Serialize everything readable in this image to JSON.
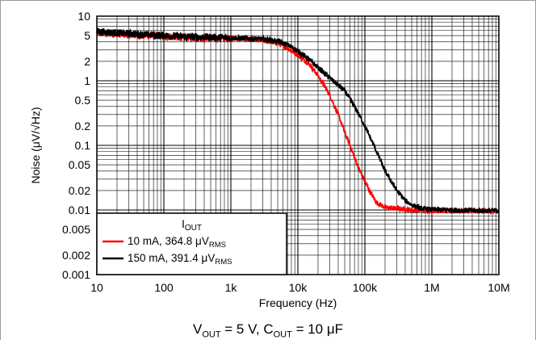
{
  "chart_data": {
    "type": "line",
    "xscale": "log",
    "yscale": "log",
    "xlim": [
      10,
      10000000
    ],
    "ylim": [
      0.001,
      10
    ],
    "xlabel": "Frequency (Hz)",
    "ylabel": "Noise (μV/√Hz)",
    "x_ticks": [
      10,
      100,
      1000,
      10000,
      100000,
      1000000,
      10000000
    ],
    "x_tick_labels": [
      "10",
      "100",
      "1k",
      "10k",
      "100k",
      "1M",
      "10M"
    ],
    "y_ticks": [
      0.001,
      0.002,
      0.005,
      0.01,
      0.02,
      0.05,
      0.1,
      0.2,
      0.5,
      1,
      2,
      5,
      10
    ],
    "y_tick_labels": [
      "0.001",
      "0.002",
      "0.005",
      "0.01",
      "0.02",
      "0.05",
      "0.1",
      "0.2",
      "0.5",
      "1",
      "2",
      "5",
      "10"
    ],
    "grid": true,
    "legend_position": "bottom-left",
    "legend_title": "I",
    "legend_title_sub": "OUT",
    "series": [
      {
        "name": "10 mA, 364.8 μV",
        "name_sub": "RMS",
        "color": "#ff0000",
        "x": [
          10,
          20,
          50,
          100,
          200,
          500,
          1000,
          2000,
          3000,
          5000,
          7000,
          10000,
          15000,
          20000,
          30000,
          40000,
          50000,
          60000,
          70000,
          80000,
          100000,
          120000,
          150000,
          200000,
          300000,
          500000,
          1000000,
          2000000,
          5000000,
          10000000
        ],
        "y": [
          5.5,
          5.3,
          5.0,
          4.9,
          4.7,
          4.6,
          4.5,
          4.4,
          4.2,
          3.8,
          3.2,
          2.5,
          1.8,
          1.2,
          0.6,
          0.3,
          0.16,
          0.1,
          0.065,
          0.045,
          0.028,
          0.019,
          0.013,
          0.011,
          0.0105,
          0.01,
          0.0098,
          0.0097,
          0.0096,
          0.0096
        ]
      },
      {
        "name": "150 mA, 391.4 μV",
        "name_sub": "RMS",
        "color": "#000000",
        "x": [
          10,
          20,
          50,
          100,
          200,
          500,
          1000,
          2000,
          3000,
          5000,
          7000,
          10000,
          15000,
          20000,
          30000,
          50000,
          70000,
          100000,
          150000,
          200000,
          300000,
          400000,
          500000,
          700000,
          1000000,
          2000000,
          5000000,
          10000000
        ],
        "y": [
          5.8,
          5.5,
          5.2,
          5.0,
          4.8,
          4.7,
          4.6,
          4.5,
          4.4,
          4.1,
          3.6,
          2.9,
          2.1,
          1.6,
          1.1,
          0.7,
          0.4,
          0.2,
          0.08,
          0.04,
          0.02,
          0.014,
          0.012,
          0.0105,
          0.0102,
          0.01,
          0.0098,
          0.0098
        ]
      }
    ]
  },
  "caption": {
    "v_label": "V",
    "v_sub": "OUT",
    "v_value": " = 5 V, C",
    "c_sub": "OUT",
    "c_value": " = 10 μF"
  }
}
